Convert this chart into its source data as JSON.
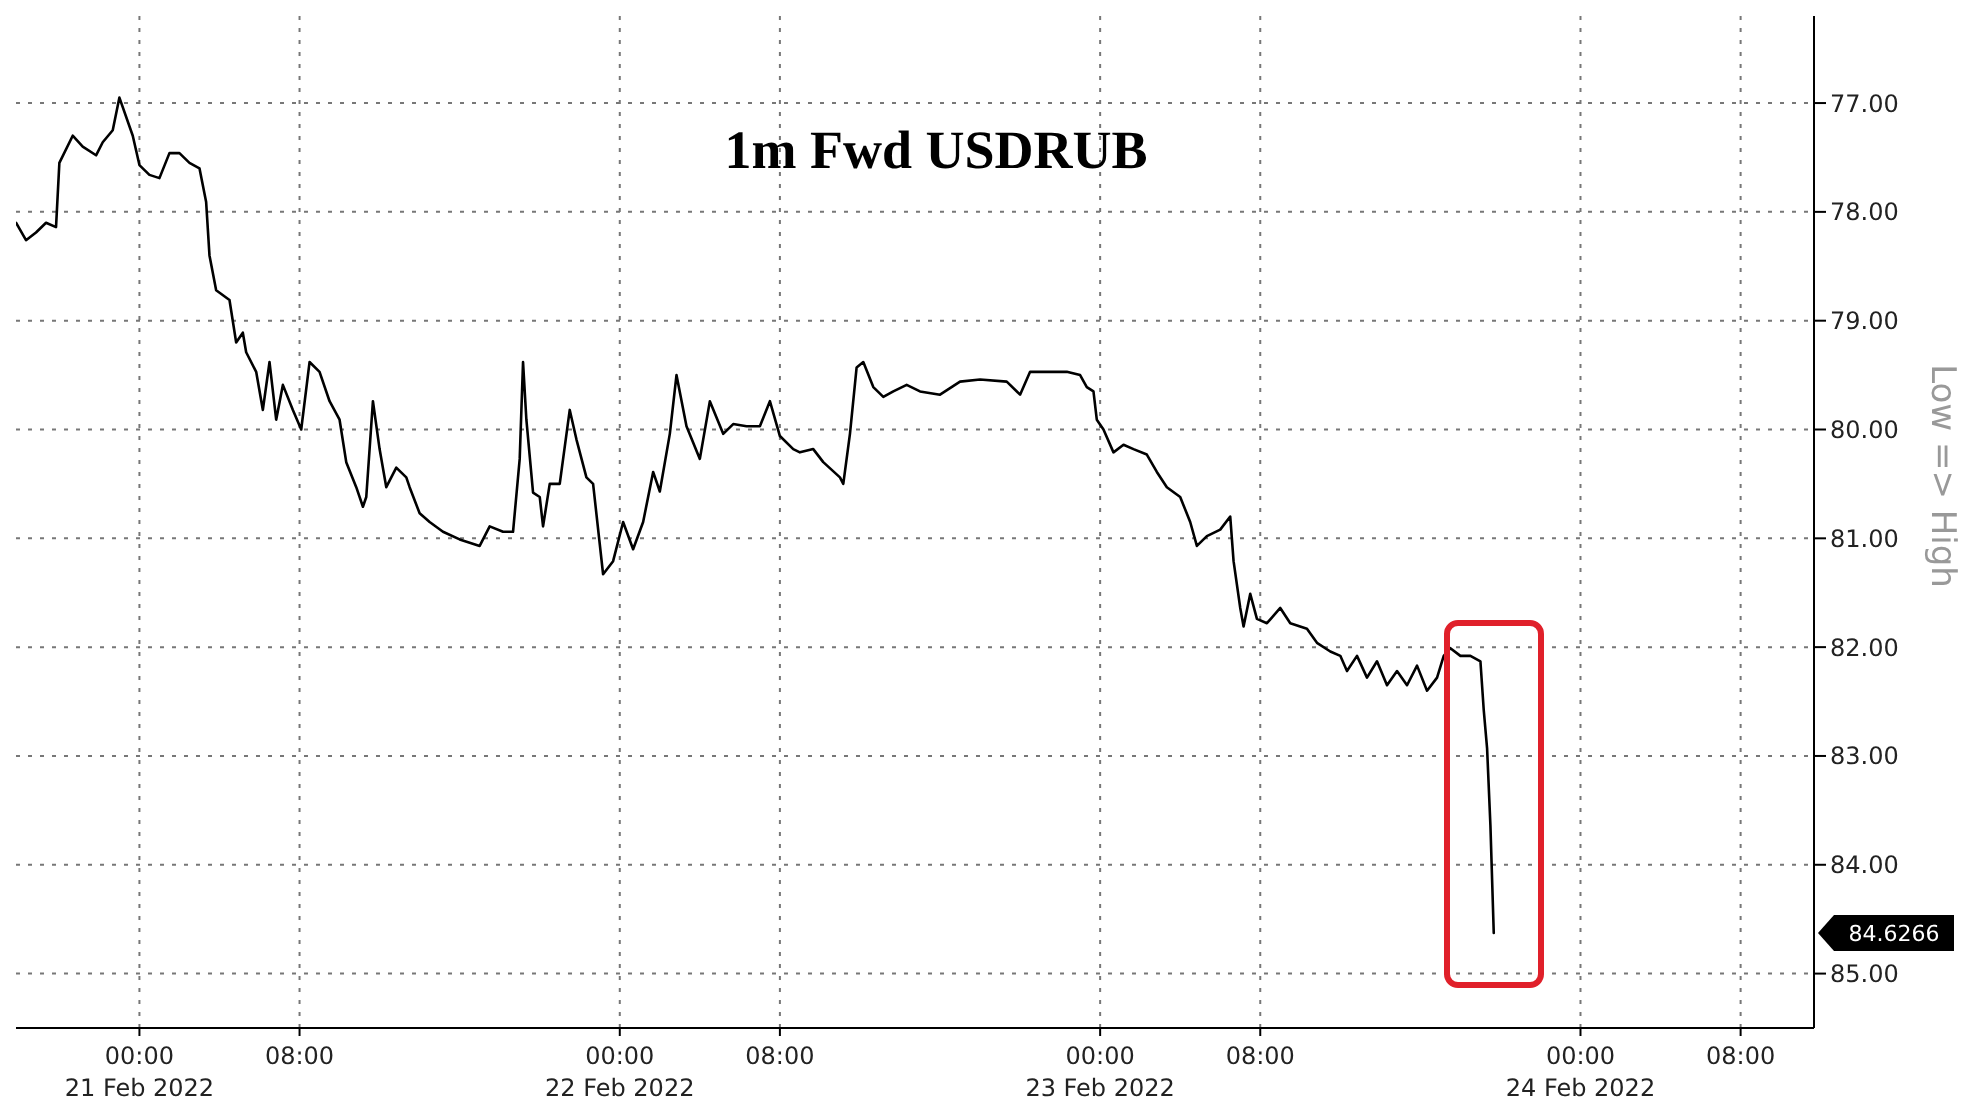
{
  "chart_data": {
    "type": "line",
    "title": "1m Fwd USDRUB",
    "ylabel": "Low => High",
    "x": [
      "2022-02-20T17:50",
      "2022-02-20T18:20",
      "2022-02-20T18:50",
      "2022-02-20T19:20",
      "2022-02-20T19:50",
      "2022-02-20T20:00",
      "2022-02-20T20:40",
      "2022-02-20T21:10",
      "2022-02-20T21:50",
      "2022-02-20T22:10",
      "2022-02-20T22:40",
      "2022-02-20T23:00",
      "2022-02-20T23:40",
      "2022-02-21T00:00",
      "2022-02-21T00:30",
      "2022-02-21T01:00",
      "2022-02-21T01:30",
      "2022-02-21T02:00",
      "2022-02-21T02:30",
      "2022-02-21T03:00",
      "2022-02-21T03:20",
      "2022-02-21T03:30",
      "2022-02-21T03:50",
      "2022-02-21T04:30",
      "2022-02-21T04:50",
      "2022-02-21T05:10",
      "2022-02-21T05:20",
      "2022-02-21T05:50",
      "2022-02-21T06:10",
      "2022-02-21T06:30",
      "2022-02-21T06:50",
      "2022-02-21T07:10",
      "2022-02-21T07:40",
      "2022-02-21T08:05",
      "2022-02-21T08:30",
      "2022-02-21T09:00",
      "2022-02-21T09:30",
      "2022-02-21T10:00",
      "2022-02-21T10:20",
      "2022-02-21T10:50",
      "2022-02-21T11:10",
      "2022-02-21T11:20",
      "2022-02-21T11:40",
      "2022-02-21T12:00",
      "2022-02-21T12:20",
      "2022-02-21T12:50",
      "2022-02-21T13:20",
      "2022-02-21T13:30",
      "2022-02-21T14:00",
      "2022-02-21T14:30",
      "2022-02-21T15:10",
      "2022-02-21T16:00",
      "2022-02-21T17:00",
      "2022-02-21T17:30",
      "2022-02-21T18:10",
      "2022-02-21T18:40",
      "2022-02-21T19:00",
      "2022-02-21T19:10",
      "2022-02-21T19:20",
      "2022-02-21T19:40",
      "2022-02-21T20:00",
      "2022-02-21T20:10",
      "2022-02-21T20:30",
      "2022-02-21T21:00",
      "2022-02-21T21:30",
      "2022-02-21T21:50",
      "2022-02-21T22:20",
      "2022-02-21T22:40",
      "2022-02-21T23:10",
      "2022-02-21T23:40",
      "2022-02-22T00:10",
      "2022-02-22T00:40",
      "2022-02-22T01:10",
      "2022-02-22T01:40",
      "2022-02-22T02:00",
      "2022-02-22T02:30",
      "2022-02-22T02:50",
      "2022-02-22T03:20",
      "2022-02-22T04:00",
      "2022-02-22T04:30",
      "2022-02-22T05:10",
      "2022-02-22T05:40",
      "2022-02-22T06:20",
      "2022-02-22T07:00",
      "2022-02-22T07:30",
      "2022-02-22T08:00",
      "2022-02-22T08:40",
      "2022-02-22T09:00",
      "2022-02-22T09:40",
      "2022-02-22T10:10",
      "2022-02-22T11:00",
      "2022-02-22T11:10",
      "2022-02-22T11:30",
      "2022-02-22T11:50",
      "2022-02-22T12:10",
      "2022-02-22T12:40",
      "2022-02-22T13:10",
      "2022-02-22T13:40",
      "2022-02-22T14:20",
      "2022-02-22T15:00",
      "2022-02-22T16:00",
      "2022-02-22T17:00",
      "2022-02-22T18:00",
      "2022-02-22T19:20",
      "2022-02-22T20:00",
      "2022-02-22T20:30",
      "2022-02-22T21:20",
      "2022-02-22T22:20",
      "2022-02-22T23:00",
      "2022-02-22T23:20",
      "2022-02-22T23:40",
      "2022-02-22T23:50",
      "2022-02-23T00:10",
      "2022-02-23T00:40",
      "2022-02-23T01:10",
      "2022-02-23T01:40",
      "2022-02-23T02:20",
      "2022-02-23T02:50",
      "2022-02-23T03:20",
      "2022-02-23T04:00",
      "2022-02-23T04:30",
      "2022-02-23T04:50",
      "2022-02-23T05:20",
      "2022-02-23T06:00",
      "2022-02-23T06:30",
      "2022-02-23T06:40",
      "2022-02-23T07:00",
      "2022-02-23T07:10",
      "2022-02-23T07:30",
      "2022-02-23T07:50",
      "2022-02-23T08:20",
      "2022-02-23T09:00",
      "2022-02-23T09:30",
      "2022-02-23T10:20",
      "2022-02-23T10:50",
      "2022-02-23T11:30",
      "2022-02-23T12:00",
      "2022-02-23T12:20",
      "2022-02-23T12:50",
      "2022-02-23T13:20",
      "2022-02-23T13:50",
      "2022-02-23T14:20",
      "2022-02-23T14:50",
      "2022-02-23T15:20",
      "2022-02-23T15:50",
      "2022-02-23T16:20",
      "2022-02-23T16:50",
      "2022-02-23T17:10",
      "2022-02-23T17:30",
      "2022-02-23T18:00",
      "2022-02-23T18:30",
      "2022-02-23T19:00",
      "2022-02-23T19:10",
      "2022-02-23T19:20",
      "2022-02-23T19:30",
      "2022-02-23T19:40"
    ],
    "series": [
      {
        "color": "#000000",
        "values": [
          78.1,
          78.26,
          78.19,
          78.1,
          78.14,
          77.55,
          77.3,
          77.4,
          77.48,
          77.36,
          77.25,
          76.95,
          77.3,
          77.57,
          77.66,
          77.69,
          77.46,
          77.46,
          77.55,
          77.6,
          77.91,
          78.4,
          78.72,
          78.81,
          79.2,
          79.11,
          79.29,
          79.47,
          79.82,
          79.38,
          79.91,
          79.59,
          79.82,
          80.0,
          79.38,
          79.47,
          79.74,
          79.91,
          80.3,
          80.53,
          80.71,
          80.62,
          79.74,
          80.18,
          80.53,
          80.35,
          80.44,
          80.53,
          80.77,
          80.85,
          80.94,
          81.01,
          81.07,
          80.89,
          80.94,
          80.94,
          80.27,
          79.38,
          79.91,
          80.58,
          80.62,
          80.89,
          80.5,
          80.5,
          79.82,
          80.09,
          80.44,
          80.5,
          81.33,
          81.21,
          80.85,
          81.1,
          80.85,
          80.39,
          80.57,
          80.04,
          79.5,
          79.97,
          80.27,
          79.74,
          80.04,
          79.95,
          79.97,
          79.97,
          79.74,
          80.06,
          80.18,
          80.21,
          80.18,
          80.3,
          80.44,
          80.5,
          80.04,
          79.43,
          79.38,
          79.61,
          79.7,
          79.65,
          79.59,
          79.65,
          79.68,
          79.56,
          79.54,
          79.56,
          79.68,
          79.47,
          79.47,
          79.47,
          79.5,
          79.61,
          79.65,
          79.91,
          80.0,
          80.21,
          80.14,
          80.18,
          80.23,
          80.39,
          80.53,
          80.62,
          80.85,
          81.07,
          80.98,
          80.92,
          80.8,
          81.21,
          81.64,
          81.81,
          81.51,
          81.74,
          81.78,
          81.64,
          81.78,
          81.83,
          81.96,
          82.04,
          82.08,
          82.22,
          82.08,
          82.28,
          82.13,
          82.35,
          82.22,
          82.35,
          82.17,
          82.4,
          82.28,
          82.08,
          82.01,
          82.08,
          82.08,
          82.13,
          82.58,
          82.93,
          83.64,
          84.6266
        ]
      }
    ],
    "xlim": [
      "2022-02-20T17:50",
      "2022-02-24T11:40"
    ],
    "xticks": [
      {
        "value": "2022-02-21T00:00",
        "label": "00:00\n21 Feb 2022"
      },
      {
        "value": "2022-02-21T08:00",
        "label": "08:00"
      },
      {
        "value": "2022-02-22T00:00",
        "label": "00:00\n22 Feb 2022"
      },
      {
        "value": "2022-02-22T08:00",
        "label": "08:00"
      },
      {
        "value": "2022-02-23T00:00",
        "label": "00:00\n23 Feb 2022"
      },
      {
        "value": "2022-02-23T08:00",
        "label": "08:00"
      },
      {
        "value": "2022-02-24T00:00",
        "label": "00:00\n24 Feb 2022"
      },
      {
        "value": "2022-02-24T08:00",
        "label": "08:00"
      }
    ],
    "ylim": [
      85.5,
      76.2
    ],
    "yticks": [
      {
        "value": 77,
        "label": "77.00"
      },
      {
        "value": 78,
        "label": "78.00"
      },
      {
        "value": 79,
        "label": "79.00"
      },
      {
        "value": 80,
        "label": "80.00"
      },
      {
        "value": 81,
        "label": "81.00"
      },
      {
        "value": 82,
        "label": "82.00"
      },
      {
        "value": 83,
        "label": "83.00"
      },
      {
        "value": 84,
        "label": "84.00"
      },
      {
        "value": 85,
        "label": "85.00"
      }
    ],
    "annotations": [
      "84.6266"
    ],
    "grid": true
  }
}
